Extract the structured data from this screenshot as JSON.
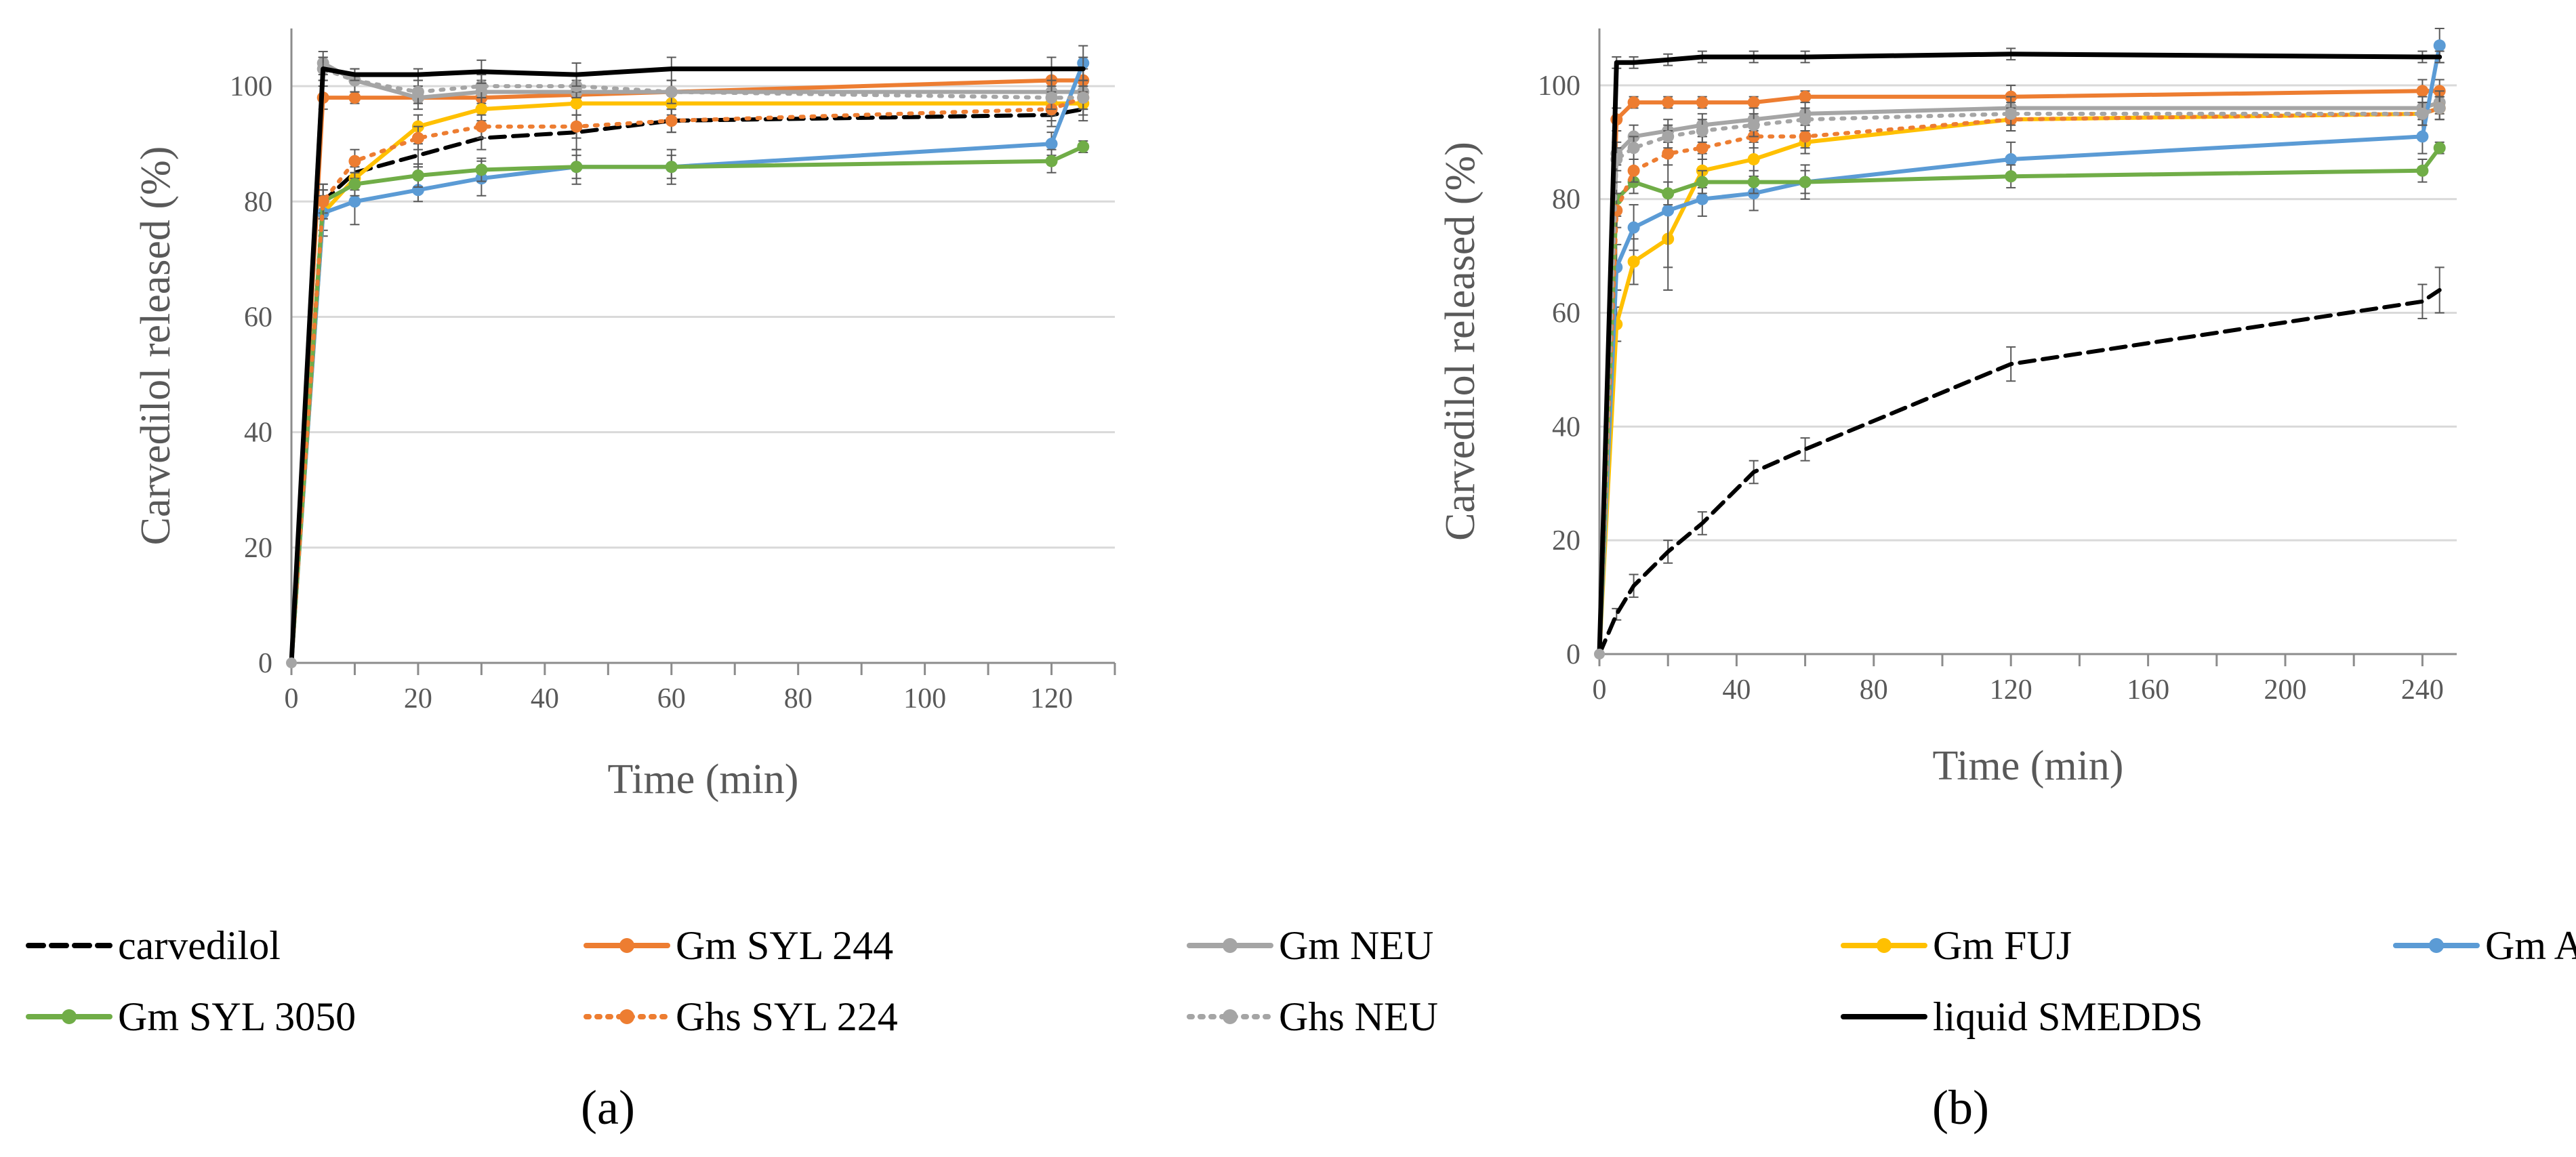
{
  "figure": {
    "panel_a_label": "(a)",
    "panel_b_label": "(b)"
  },
  "legend": [
    {
      "key": "carvedilol",
      "label": "carvedilol",
      "color": "#000000",
      "dash": "dashed",
      "marker": false
    },
    {
      "key": "syl244",
      "label": "Gm SYL 244",
      "color": "#ED7D31",
      "dash": "solid",
      "marker": true
    },
    {
      "key": "neu",
      "label": "Gm NEU",
      "color": "#A5A5A5",
      "dash": "solid",
      "marker": true
    },
    {
      "key": "fuj",
      "label": "Gm FUJ",
      "color": "#FFC000",
      "dash": "solid",
      "marker": true
    },
    {
      "key": "aer",
      "label": "Gm AER",
      "color": "#5B9BD5",
      "dash": "solid",
      "marker": true
    },
    {
      "key": "syl3050",
      "label": "Gm SYL 3050",
      "color": "#70AD47",
      "dash": "solid",
      "marker": true
    },
    {
      "key": "ghs224",
      "label": "Ghs SYL 224",
      "color": "#ED7D31",
      "dash": "dotted",
      "marker": true
    },
    {
      "key": "ghsneu",
      "label": "Ghs NEU",
      "color": "#A5A5A5",
      "dash": "dotted",
      "marker": true
    },
    {
      "key": "smedds",
      "label": "liquid SMEDDS",
      "color": "#000000",
      "dash": "solid",
      "marker": false
    }
  ],
  "chart_data": [
    {
      "type": "line",
      "panel": "a",
      "xlabel": "Time (min)",
      "ylabel": "Carvedilol released (%)",
      "xlim": [
        0,
        130
      ],
      "ylim": [
        0,
        110
      ],
      "xticks": [
        0,
        20,
        40,
        60,
        80,
        100,
        120
      ],
      "yticks": [
        0,
        20,
        40,
        60,
        80,
        100
      ],
      "grid": true,
      "series": [
        {
          "name": "carvedilol",
          "x": [
            0,
            5,
            10,
            20,
            30,
            45,
            60,
            120,
            125
          ],
          "y": [
            0,
            80,
            85,
            88,
            91,
            92,
            94,
            95,
            96
          ],
          "err": [
            0,
            3,
            2,
            2,
            2,
            3,
            2,
            2,
            2
          ]
        },
        {
          "name": "Gm SYL 244",
          "x": [
            0,
            5,
            10,
            20,
            30,
            45,
            60,
            120,
            125
          ],
          "y": [
            0,
            98,
            98,
            98,
            98,
            98.5,
            99,
            101,
            101
          ],
          "err": [
            0,
            2,
            1,
            1,
            2,
            2,
            2,
            2,
            2
          ]
        },
        {
          "name": "Gm NEU",
          "x": [
            0,
            5,
            10,
            20,
            30,
            45,
            60,
            120,
            125
          ],
          "y": [
            0,
            104,
            101,
            98,
            99,
            99,
            99,
            99,
            99
          ],
          "err": [
            0,
            2,
            2,
            2,
            2,
            2,
            2,
            2,
            2
          ]
        },
        {
          "name": "Gm FUJ",
          "x": [
            0,
            5,
            10,
            20,
            30,
            45,
            60,
            120,
            125
          ],
          "y": [
            0,
            78,
            84,
            93,
            96,
            97,
            97,
            97,
            97
          ],
          "err": [
            0,
            3,
            2,
            2,
            2,
            2,
            2,
            2,
            2
          ]
        },
        {
          "name": "Gm AER",
          "x": [
            0,
            5,
            10,
            20,
            30,
            45,
            60,
            120,
            125
          ],
          "y": [
            0,
            78,
            80,
            82,
            84,
            86,
            86,
            90,
            104
          ],
          "err": [
            0,
            4,
            4,
            2,
            3,
            3,
            3,
            2,
            3
          ]
        },
        {
          "name": "Gm SYL 3050",
          "x": [
            0,
            5,
            10,
            20,
            30,
            45,
            60,
            120,
            125
          ],
          "y": [
            0,
            80,
            83,
            84.5,
            85.5,
            86,
            86,
            87,
            89.5
          ],
          "err": [
            0,
            2,
            2,
            2,
            2,
            2,
            2,
            2,
            1
          ]
        },
        {
          "name": "Ghs SYL 224",
          "x": [
            0,
            5,
            10,
            20,
            30,
            45,
            60,
            120,
            125
          ],
          "y": [
            0,
            80,
            87,
            91,
            93,
            93,
            94,
            96,
            98
          ],
          "err": [
            0,
            3,
            2,
            2,
            2,
            2,
            2,
            2,
            2
          ]
        },
        {
          "name": "Ghs NEU",
          "x": [
            0,
            5,
            10,
            20,
            30,
            45,
            60,
            120,
            125
          ],
          "y": [
            0,
            103,
            101,
            99,
            100,
            100,
            99,
            98,
            98
          ],
          "err": [
            0,
            2,
            2,
            2,
            2,
            2,
            2,
            2,
            2
          ]
        },
        {
          "name": "liquid SMEDDS",
          "x": [
            0,
            5,
            10,
            20,
            30,
            45,
            60,
            120,
            125
          ],
          "y": [
            0,
            103,
            102,
            102,
            102.5,
            102,
            103,
            103,
            103
          ],
          "err": [
            0,
            2,
            1,
            1,
            2,
            2,
            2,
            2,
            2
          ]
        }
      ]
    },
    {
      "type": "line",
      "panel": "b",
      "xlabel": "Time (min)",
      "ylabel": "Carvedilol released (%)",
      "xlim": [
        0,
        250
      ],
      "ylim": [
        0,
        110
      ],
      "xticks": [
        0,
        40,
        80,
        120,
        160,
        200,
        240
      ],
      "yticks": [
        0,
        20,
        40,
        60,
        80,
        100
      ],
      "grid": true,
      "series": [
        {
          "name": "carvedilol",
          "x": [
            0,
            5,
            10,
            20,
            30,
            45,
            60,
            120,
            240,
            245
          ],
          "y": [
            0,
            7,
            12,
            18,
            23,
            32,
            36,
            51,
            62,
            64
          ],
          "err": [
            0,
            1,
            2,
            2,
            2,
            2,
            2,
            3,
            3,
            4
          ]
        },
        {
          "name": "Gm SYL 244",
          "x": [
            0,
            5,
            10,
            20,
            30,
            45,
            60,
            120,
            240,
            245
          ],
          "y": [
            0,
            94,
            97,
            97,
            97,
            97,
            98,
            98,
            99,
            99
          ],
          "err": [
            0,
            2,
            1,
            1,
            1,
            1,
            1,
            2,
            2,
            2
          ]
        },
        {
          "name": "Gm NEU",
          "x": [
            0,
            5,
            10,
            20,
            30,
            45,
            60,
            120,
            240,
            245
          ],
          "y": [
            0,
            88,
            91,
            92,
            93,
            94,
            95,
            96,
            96,
            97
          ],
          "err": [
            0,
            2,
            2,
            2,
            2,
            2,
            2,
            2,
            2,
            2
          ]
        },
        {
          "name": "Gm FUJ",
          "x": [
            0,
            5,
            10,
            20,
            30,
            45,
            60,
            120,
            240,
            245
          ],
          "y": [
            0,
            58,
            69,
            73,
            85,
            87,
            90,
            94,
            95,
            96
          ],
          "err": [
            0,
            3,
            4,
            5,
            3,
            3,
            2,
            2,
            2,
            2
          ]
        },
        {
          "name": "Gm AER",
          "x": [
            0,
            5,
            10,
            20,
            30,
            45,
            60,
            120,
            240,
            245
          ],
          "y": [
            0,
            68,
            75,
            78,
            80,
            81,
            83,
            87,
            91,
            107
          ],
          "err": [
            0,
            4,
            4,
            14,
            3,
            3,
            3,
            3,
            3,
            3
          ]
        },
        {
          "name": "Gm SYL 3050",
          "x": [
            0,
            5,
            10,
            20,
            30,
            45,
            60,
            120,
            240,
            245
          ],
          "y": [
            0,
            80,
            83,
            81,
            83,
            83,
            83,
            84,
            85,
            89
          ],
          "err": [
            0,
            3,
            2,
            2,
            2,
            2,
            2,
            2,
            2,
            1
          ]
        },
        {
          "name": "Ghs SYL 224",
          "x": [
            0,
            5,
            10,
            20,
            30,
            45,
            60,
            120,
            240,
            245
          ],
          "y": [
            0,
            78,
            85,
            88,
            89,
            91,
            91,
            94,
            95,
            96
          ],
          "err": [
            0,
            3,
            2,
            2,
            2,
            2,
            2,
            2,
            2,
            2
          ]
        },
        {
          "name": "Ghs NEU",
          "x": [
            0,
            5,
            10,
            20,
            30,
            45,
            60,
            120,
            240,
            245
          ],
          "y": [
            0,
            87,
            89,
            91,
            92,
            93,
            94,
            95,
            95,
            96
          ],
          "err": [
            0,
            2,
            2,
            2,
            2,
            2,
            2,
            2,
            2,
            2
          ]
        },
        {
          "name": "liquid SMEDDS",
          "x": [
            0,
            5,
            10,
            20,
            30,
            45,
            60,
            120,
            240,
            245
          ],
          "y": [
            0,
            104,
            104,
            104.5,
            105,
            105,
            105,
            105.5,
            105,
            105
          ],
          "err": [
            0,
            1,
            1,
            1,
            1,
            1,
            1,
            1,
            1,
            1
          ]
        }
      ]
    }
  ]
}
